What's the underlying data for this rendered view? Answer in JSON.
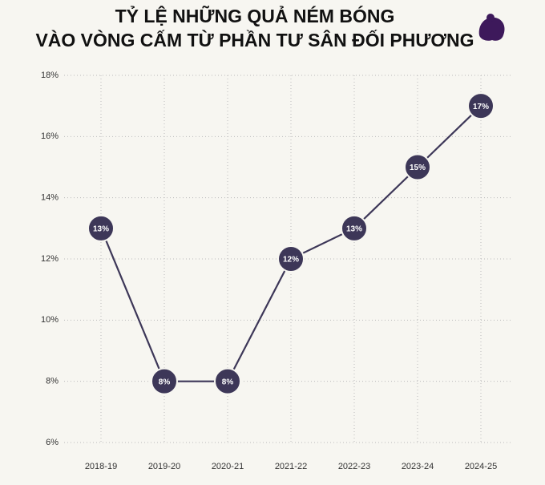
{
  "chart_data": {
    "type": "line",
    "title": [
      "TỶ LỆ NHỮNG QUẢ NÉM BÓNG",
      "VÀO VÒNG CẤM TỪ PHẦN TƯ SÂN ĐỐI PHƯƠNG"
    ],
    "categories": [
      "2018-19",
      "2019-20",
      "2020-21",
      "2021-22",
      "2022-23",
      "2023-24",
      "2024-25"
    ],
    "values": [
      13,
      8,
      8,
      12,
      13,
      15,
      17
    ],
    "value_labels": [
      "13%",
      "8%",
      "8%",
      "12%",
      "13%",
      "15%",
      "17%"
    ],
    "color": "#3d3758",
    "ylim": [
      6,
      18
    ],
    "yticks": [
      {
        "value": 6,
        "label": "6%"
      },
      {
        "value": 8,
        "label": "8%"
      },
      {
        "value": 10,
        "label": "10%"
      },
      {
        "value": 12,
        "label": "12%"
      },
      {
        "value": 14,
        "label": "14%"
      },
      {
        "value": 16,
        "label": "16%"
      },
      {
        "value": 18,
        "label": "18%"
      }
    ],
    "grid": true
  }
}
